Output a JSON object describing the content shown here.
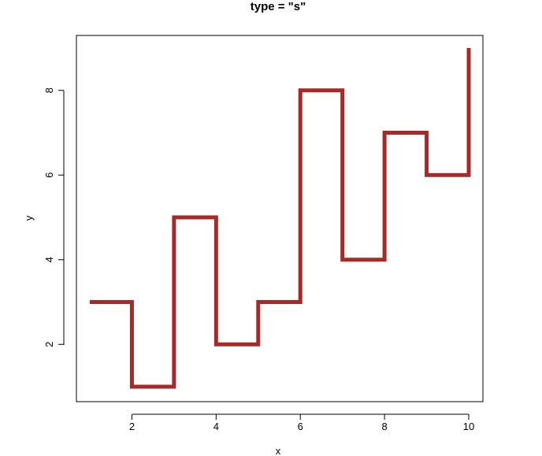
{
  "chart_data": {
    "type": "line",
    "step": true,
    "title": "type = \"s\"",
    "xlabel": "x",
    "ylabel": "y",
    "xlim": [
      1,
      10
    ],
    "ylim": [
      1,
      9
    ],
    "x_ticks": [
      2,
      4,
      6,
      8,
      10
    ],
    "y_ticks": [
      2,
      4,
      6,
      8
    ],
    "grid": false,
    "series": [
      {
        "x": [
          1,
          2,
          3,
          4,
          5,
          6,
          7,
          8,
          9,
          10
        ],
        "y": [
          3,
          1,
          5,
          2,
          3,
          8,
          4,
          7,
          6,
          9
        ],
        "color": "#a52a2a"
      }
    ]
  }
}
